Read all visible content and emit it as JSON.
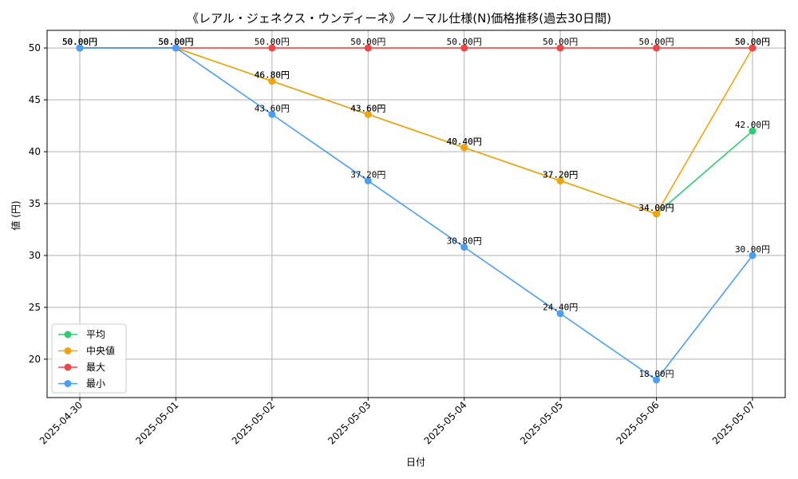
{
  "chart_data": {
    "type": "line",
    "title": "《レアル・ジェネクス・ウンディーネ》ノーマル仕様(N)価格推移(過去30日間)",
    "xlabel": "日付",
    "ylabel": "値 (円)",
    "categories": [
      "2025-04-30",
      "2025-05-01",
      "2025-05-02",
      "2025-05-03",
      "2025-05-04",
      "2025-05-05",
      "2025-05-06",
      "2025-05-07"
    ],
    "ylim": [
      16.3,
      51.7
    ],
    "yticks": [
      20,
      25,
      30,
      35,
      40,
      45,
      50
    ],
    "grid": true,
    "legend_position": "lower-left",
    "series": [
      {
        "name": "平均",
        "color": "#2ecc71",
        "values": [
          50.0,
          50.0,
          46.8,
          43.6,
          40.4,
          37.2,
          34.0,
          42.0
        ],
        "labels": [
          "50.00円",
          "50.00円",
          "46.80円",
          "43.60円",
          "40.40円",
          "37.20円",
          "34.00円",
          "42.00円"
        ]
      },
      {
        "name": "中央値",
        "color": "#f5a30a",
        "values": [
          50.0,
          50.0,
          46.8,
          43.6,
          40.4,
          37.2,
          34.0,
          50.0
        ],
        "labels": [
          "50.00円",
          "50.00円",
          "46.80円",
          "43.60円",
          "40.40円",
          "37.20円",
          "34.00円",
          "50.00円"
        ]
      },
      {
        "name": "最大",
        "color": "#f04545",
        "values": [
          50.0,
          50.0,
          50.0,
          50.0,
          50.0,
          50.0,
          50.0,
          50.0
        ],
        "labels": [
          "50.00円",
          "50.00円",
          "50.00円",
          "50.00円",
          "50.00円",
          "50.00円",
          "50.00円",
          "50.00円"
        ]
      },
      {
        "name": "最小",
        "color": "#4a9ff5",
        "values": [
          50.0,
          50.0,
          43.6,
          37.2,
          30.8,
          24.4,
          18.0,
          30.0
        ],
        "labels": [
          "50.00円",
          "50.00円",
          "43.60円",
          "37.20円",
          "30.80円",
          "24.40円",
          "18.00円",
          "30.00円"
        ]
      }
    ]
  }
}
